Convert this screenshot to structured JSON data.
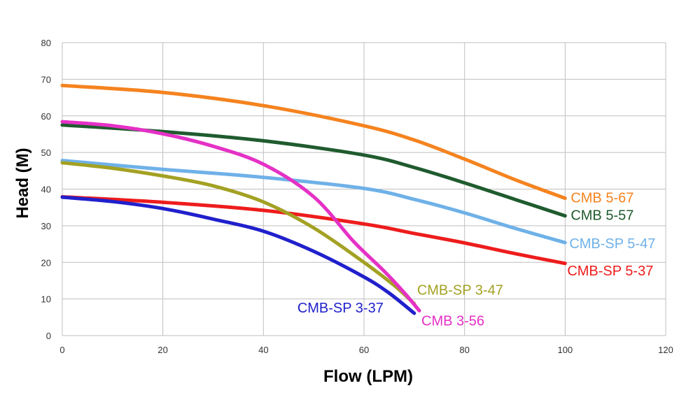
{
  "chart_data": {
    "type": "line",
    "xlabel": "Flow (LPM)",
    "ylabel": "Head (M)",
    "xlim": [
      0,
      120
    ],
    "ylim": [
      0,
      80
    ],
    "x_ticks": [
      "0",
      "20",
      "40",
      "60",
      "80",
      "100",
      "120"
    ],
    "y_ticks": [
      "0",
      "10",
      "20",
      "30",
      "40",
      "50",
      "60",
      "70",
      "80"
    ],
    "grid": true,
    "legend": "none (series labelled at line ends)",
    "series": [
      {
        "name": "CMB 5-67",
        "color": "#F5831F",
        "points": [
          [
            0,
            68.3
          ],
          [
            20,
            66.4
          ],
          [
            40,
            62.8
          ],
          [
            60,
            57.3
          ],
          [
            70,
            53.4
          ],
          [
            80,
            48.2
          ],
          [
            90,
            42.6
          ],
          [
            100,
            37.5
          ]
        ]
      },
      {
        "name": "CMB 5-57",
        "color": "#1F5B2E",
        "points": [
          [
            0,
            57.5
          ],
          [
            20,
            55.7
          ],
          [
            40,
            53.2
          ],
          [
            60,
            49.3
          ],
          [
            70,
            45.9
          ],
          [
            80,
            41.7
          ],
          [
            90,
            37.2
          ],
          [
            100,
            32.7
          ]
        ]
      },
      {
        "name": "CMB-SP 5-47",
        "color": "#6FB1E8",
        "points": [
          [
            0,
            47.8
          ],
          [
            20,
            45.4
          ],
          [
            40,
            43.2
          ],
          [
            60,
            40.2
          ],
          [
            70,
            37.2
          ],
          [
            80,
            33.5
          ],
          [
            90,
            29.3
          ],
          [
            100,
            25.4
          ]
        ]
      },
      {
        "name": "CMB-SP 5-37",
        "color": "#EE1C1C",
        "points": [
          [
            0,
            37.9
          ],
          [
            20,
            36.4
          ],
          [
            40,
            34.2
          ],
          [
            60,
            30.5
          ],
          [
            70,
            27.9
          ],
          [
            80,
            25.3
          ],
          [
            90,
            22.4
          ],
          [
            100,
            19.7
          ]
        ]
      },
      {
        "name": "CMB-SP 3-47",
        "color": "#A3A123",
        "points": [
          [
            0,
            47.2
          ],
          [
            10,
            45.7
          ],
          [
            20,
            43.6
          ],
          [
            30,
            40.9
          ],
          [
            40,
            36.5
          ],
          [
            50,
            29.4
          ],
          [
            60,
            20.0
          ],
          [
            66,
            13.7
          ],
          [
            70,
            8.7
          ]
        ]
      },
      {
        "name": "CMB 3-56",
        "color": "#E531C6",
        "points": [
          [
            0,
            58.4
          ],
          [
            10,
            57.3
          ],
          [
            20,
            55.1
          ],
          [
            30,
            51.7
          ],
          [
            40,
            46.8
          ],
          [
            50,
            37.9
          ],
          [
            58,
            25.6
          ],
          [
            64,
            17.6
          ],
          [
            68,
            11.7
          ],
          [
            71,
            6.8
          ]
        ]
      },
      {
        "name": "CMB-SP 3-37",
        "color": "#2020CC",
        "points": [
          [
            0,
            37.8
          ],
          [
            10,
            36.6
          ],
          [
            20,
            34.7
          ],
          [
            30,
            31.8
          ],
          [
            40,
            28.5
          ],
          [
            50,
            23.0
          ],
          [
            60,
            16.0
          ],
          [
            65,
            11.6
          ],
          [
            70,
            6.1
          ]
        ]
      }
    ]
  }
}
